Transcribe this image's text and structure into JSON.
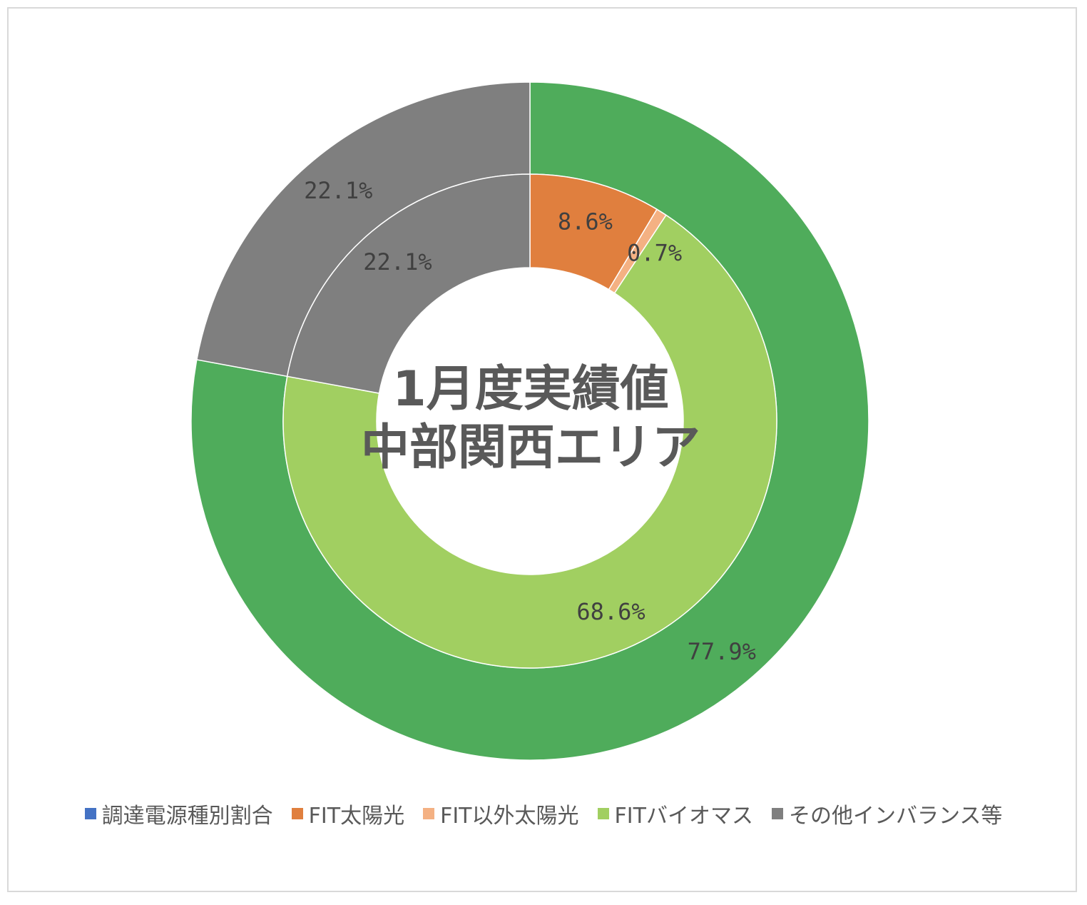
{
  "chart_data": {
    "type": "pie",
    "subtype": "donut",
    "center_title_lines": [
      "1月度実績値",
      "中部関西エリア"
    ],
    "rings": [
      {
        "ring": "outer",
        "slices": [
          {
            "category": "調達電源種別割合",
            "value": 77.9,
            "label": "77.9%"
          },
          {
            "category": "その他インバランス等",
            "value": 22.1,
            "label": "22.1%"
          }
        ]
      },
      {
        "ring": "inner",
        "slices": [
          {
            "category": "FIT太陽光",
            "value": 8.6,
            "label": "8.6%"
          },
          {
            "category": "FIT以外太陽光",
            "value": 0.7,
            "label": "0.7%"
          },
          {
            "category": "FITバイオマス",
            "value": 68.6,
            "label": "68.6%"
          },
          {
            "category": "その他インバランス等",
            "value": 22.1,
            "label": "22.1%"
          }
        ]
      }
    ],
    "legend_position": "bottom",
    "legend": [
      {
        "name": "調達電源種別割合",
        "color": "#4472c4"
      },
      {
        "name": "FIT太陽光",
        "color": "#e07f3e"
      },
      {
        "name": "FIT以外太陽光",
        "color": "#f4b183"
      },
      {
        "name": "FITバイオマス",
        "color": "#a1cf61"
      },
      {
        "name": "その他インバランス等",
        "color": "#7f7f7f"
      }
    ],
    "outer_ring_colors": {
      "調達電源種別割合": "#4fac5b",
      "その他インバランス等": "#7f7f7f"
    },
    "inner_ring_colors": {
      "FIT太陽光": "#e07f3e",
      "FIT以外太陽光": "#f4b183",
      "FITバイオマス": "#a1cf61",
      "その他インバランス等": "#7f7f7f"
    }
  }
}
